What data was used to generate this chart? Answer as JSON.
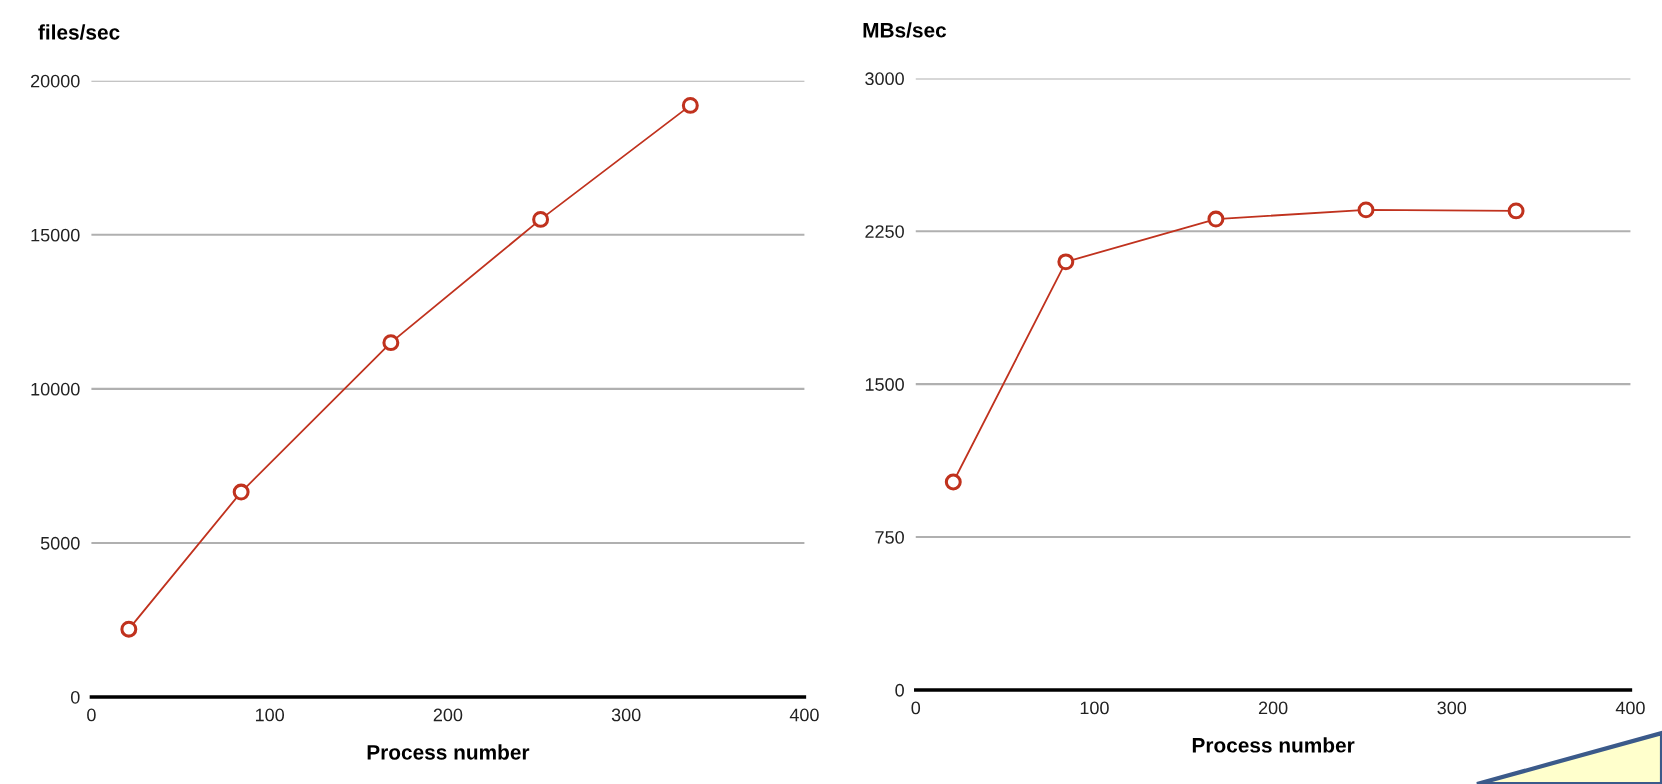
{
  "chart_data": [
    {
      "type": "line",
      "ylabel": "files/sec",
      "xlabel": "Process number",
      "x": [
        21,
        84,
        168,
        252,
        336
      ],
      "series": [
        {
          "color": "#c0321e",
          "values": [
            2200,
            6650,
            11500,
            15500,
            19200
          ]
        }
      ],
      "xlim": [
        0,
        400
      ],
      "xticks": [
        0,
        100,
        200,
        300,
        400
      ],
      "ylim": [
        0,
        20000
      ],
      "yticks": [
        0,
        5000,
        10000,
        15000,
        20000
      ],
      "grid": "y",
      "marker": "circle",
      "line_style": "solid"
    },
    {
      "type": "line",
      "ylabel": "MBs/sec",
      "xlabel": "Process number",
      "x": [
        21,
        84,
        168,
        252,
        336
      ],
      "series": [
        {
          "color": "#c0321e",
          "values": [
            1020,
            2100,
            2310,
            2355,
            2350
          ]
        }
      ],
      "xlim": [
        0,
        400
      ],
      "xticks": [
        0,
        100,
        200,
        300,
        400
      ],
      "ylim": [
        0,
        3000
      ],
      "yticks": [
        0,
        750,
        1500,
        2250,
        3000
      ],
      "grid": "y",
      "marker": "circle",
      "line_style": "solid"
    }
  ]
}
